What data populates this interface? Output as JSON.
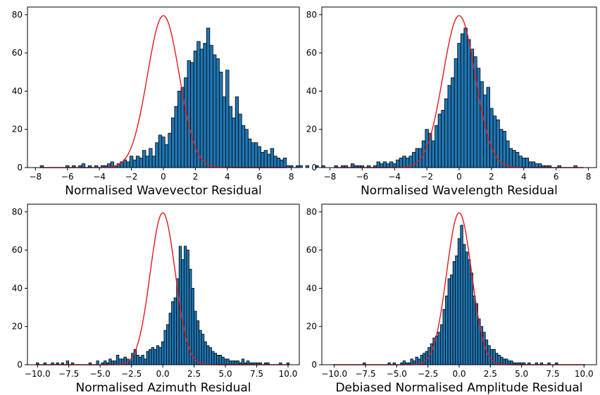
{
  "chart_data": [
    {
      "type": "bar",
      "xlabel": "Normalised Wavevector Residual",
      "xlim": [
        -8.5,
        8.5
      ],
      "ylim": [
        0,
        84
      ],
      "xticks": [
        -8,
        -6,
        -4,
        -2,
        0,
        2,
        4,
        6,
        8
      ],
      "xtick_labels": [
        "−8",
        "−6",
        "−4",
        "−2",
        "0",
        "2",
        "4",
        "6",
        "8"
      ],
      "yticks": [
        0,
        20,
        40,
        60,
        80
      ],
      "bin_start": -7.7,
      "bin_width": 0.2,
      "values": [
        1,
        0,
        0,
        0,
        0,
        0,
        0,
        0,
        1,
        0,
        1,
        0,
        1,
        2,
        0,
        1,
        0,
        1,
        0,
        1,
        1,
        2,
        3,
        1,
        2,
        3,
        4,
        3,
        6,
        4,
        6,
        5,
        9,
        6,
        10,
        6,
        13,
        17,
        16,
        12,
        18,
        26,
        32,
        40,
        42,
        47,
        56,
        55,
        61,
        66,
        62,
        65,
        73,
        64,
        59,
        57,
        50,
        37,
        51,
        32,
        26,
        37,
        28,
        22,
        20,
        15,
        13,
        13,
        11,
        8,
        9,
        7,
        10,
        6,
        5,
        4,
        5,
        1,
        1,
        0,
        1,
        1,
        0,
        1,
        0,
        0,
        1,
        0,
        1,
        0,
        0,
        0,
        1,
        0,
        0,
        0
      ],
      "curve": {
        "peak": 79.5,
        "mean": 0,
        "sigma": 1.0,
        "range": [
          -7.7,
          7.7
        ]
      },
      "grid": false
    },
    {
      "type": "bar",
      "xlabel": "Normalised Wavelength Residual",
      "xlim": [
        -8.5,
        8.5
      ],
      "ylim": [
        0,
        84
      ],
      "xticks": [
        -8,
        -6,
        -4,
        -2,
        0,
        2,
        4,
        6,
        8
      ],
      "xtick_labels": [
        "−8",
        "−6",
        "−4",
        "−2",
        "0",
        "2",
        "4",
        "6",
        "8"
      ],
      "yticks": [
        0,
        20,
        40,
        60,
        80
      ],
      "bin_start": -7.7,
      "bin_width": 0.2,
      "values": [
        0,
        0,
        1,
        1,
        0,
        2,
        1,
        1,
        1,
        0,
        1,
        0,
        1,
        3,
        2,
        3,
        2,
        3,
        2,
        4,
        5,
        6,
        5,
        6,
        8,
        10,
        10,
        14,
        20,
        18,
        14,
        22,
        28,
        30,
        36,
        43,
        47,
        57,
        65,
        70,
        73,
        67,
        62,
        58,
        52,
        45,
        38,
        42,
        31,
        27,
        25,
        20,
        19,
        14,
        10,
        9,
        8,
        6,
        5,
        5,
        3,
        3,
        2,
        2,
        1,
        1,
        1,
        0,
        0,
        1,
        0,
        0,
        0,
        0,
        1,
        0,
        0,
        0,
        0,
        0,
        0,
        0,
        0,
        0,
        0,
        0,
        0,
        0,
        0,
        0,
        0,
        0,
        0,
        0,
        0,
        0
      ],
      "curve": {
        "peak": 79.5,
        "mean": 0,
        "sigma": 1.0,
        "range": [
          -7.7,
          7.7
        ]
      },
      "grid": false
    },
    {
      "type": "bar",
      "xlabel": "Normalised Azimuth Residual",
      "xlim": [
        -10.8,
        10.9
      ],
      "ylim": [
        0,
        84
      ],
      "xticks": [
        -10,
        -7.5,
        -5,
        -2.5,
        0,
        2.5,
        5,
        7.5,
        10
      ],
      "xtick_labels": [
        "−10.0",
        "−7.5",
        "−5.0",
        "−2.5",
        "0.0",
        "2.5",
        "5.0",
        "7.5",
        "10.0"
      ],
      "yticks": [
        0,
        20,
        40,
        60,
        80
      ],
      "bin_start": -10.1,
      "bin_width": 0.2,
      "values": [
        1,
        0,
        0,
        1,
        0,
        0,
        1,
        0,
        1,
        0,
        1,
        0,
        2,
        0,
        1,
        0,
        0,
        0,
        0,
        0,
        0,
        1,
        0,
        0,
        2,
        0,
        1,
        2,
        1,
        3,
        2,
        2,
        5,
        3,
        3,
        4,
        3,
        2,
        6,
        8,
        5,
        4,
        5,
        3,
        7,
        8,
        9,
        8,
        10,
        9,
        12,
        18,
        21,
        27,
        33,
        35,
        45,
        62,
        55,
        62,
        60,
        50,
        40,
        28,
        23,
        18,
        16,
        12,
        10,
        9,
        7,
        6,
        5,
        5,
        4,
        3,
        3,
        2,
        2,
        2,
        2,
        1,
        3,
        1,
        2,
        1,
        1,
        1,
        1,
        1,
        0,
        1,
        1,
        0,
        0,
        0,
        0,
        1,
        0,
        0,
        1,
        0,
        0
      ],
      "curve": {
        "peak": 79.5,
        "mean": 0,
        "sigma": 1.0,
        "range": [
          -10.1,
          10.1
        ]
      },
      "grid": false
    },
    {
      "type": "bar",
      "xlabel": "Debiased Normalised Amplitude Residual",
      "xlim": [
        -11.0,
        11.0
      ],
      "ylim": [
        0,
        84
      ],
      "xticks": [
        -10,
        -7.5,
        -5,
        -2.5,
        0,
        2.5,
        5,
        7.5,
        10
      ],
      "xtick_labels": [
        "−10.0",
        "−7.5",
        "−5.0",
        "−2.5",
        "0.0",
        "2.5",
        "5.0",
        "7.5",
        "10.0"
      ],
      "yticks": [
        0,
        20,
        40,
        60,
        80
      ],
      "bin_start": -10.1,
      "bin_width": 0.2,
      "values": [
        0,
        0,
        0,
        0,
        0,
        0,
        0,
        0,
        0,
        0,
        0,
        0,
        1,
        0,
        0,
        0,
        0,
        0,
        0,
        0,
        0,
        0,
        1,
        0,
        1,
        0,
        0,
        1,
        2,
        1,
        1,
        3,
        2,
        4,
        3,
        5,
        6,
        7,
        9,
        11,
        14,
        15,
        17,
        21,
        29,
        36,
        45,
        47,
        54,
        57,
        66,
        73,
        63,
        59,
        55,
        48,
        36,
        32,
        24,
        20,
        17,
        13,
        10,
        8,
        8,
        6,
        5,
        4,
        3,
        3,
        2,
        2,
        1,
        1,
        1,
        1,
        1,
        0,
        1,
        0,
        0,
        1,
        0,
        1,
        0,
        0,
        1,
        0,
        0,
        1,
        0,
        0,
        0,
        0,
        0,
        0,
        0,
        0,
        0,
        0,
        0,
        0
      ],
      "curve": {
        "peak": 79.5,
        "mean": 0,
        "sigma": 1.0,
        "range": [
          -10.1,
          10.1
        ]
      },
      "grid": false
    }
  ]
}
